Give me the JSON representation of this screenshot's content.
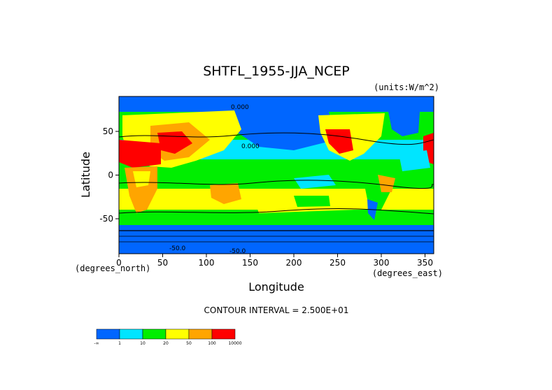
{
  "chart_data": {
    "type": "heatmap",
    "title": "SHTFL_1955-JJA_NCEP",
    "units": "(units:W/m^2)",
    "xlabel": "Longitude",
    "ylabel": "Latitude",
    "x_unit_label": "(degrees_east)",
    "y_unit_label": "(degrees_north)",
    "xlim": [
      0,
      360
    ],
    "ylim": [
      -90,
      90
    ],
    "x_ticks": [
      0,
      50,
      100,
      150,
      200,
      250,
      300,
      350
    ],
    "y_ticks": [
      50,
      0,
      -50
    ],
    "contour_interval_text": "CONTOUR INTERVAL = 2.500E+01",
    "contour_labels": [
      "0.000",
      "0.000",
      "-50.0",
      "-50.0"
    ],
    "colorbar": {
      "bins": [
        "-∞–1",
        "1–10",
        "10–20",
        "20–50",
        "50–100",
        "100–10000"
      ],
      "tick_labels": [
        "-∞",
        "1",
        "10",
        "20",
        "50",
        "100",
        "10000"
      ],
      "colors": [
        "#0066ff",
        "#00e5ff",
        "#00ee00",
        "#ffff00",
        "#ffa500",
        "#ff0000"
      ]
    }
  }
}
